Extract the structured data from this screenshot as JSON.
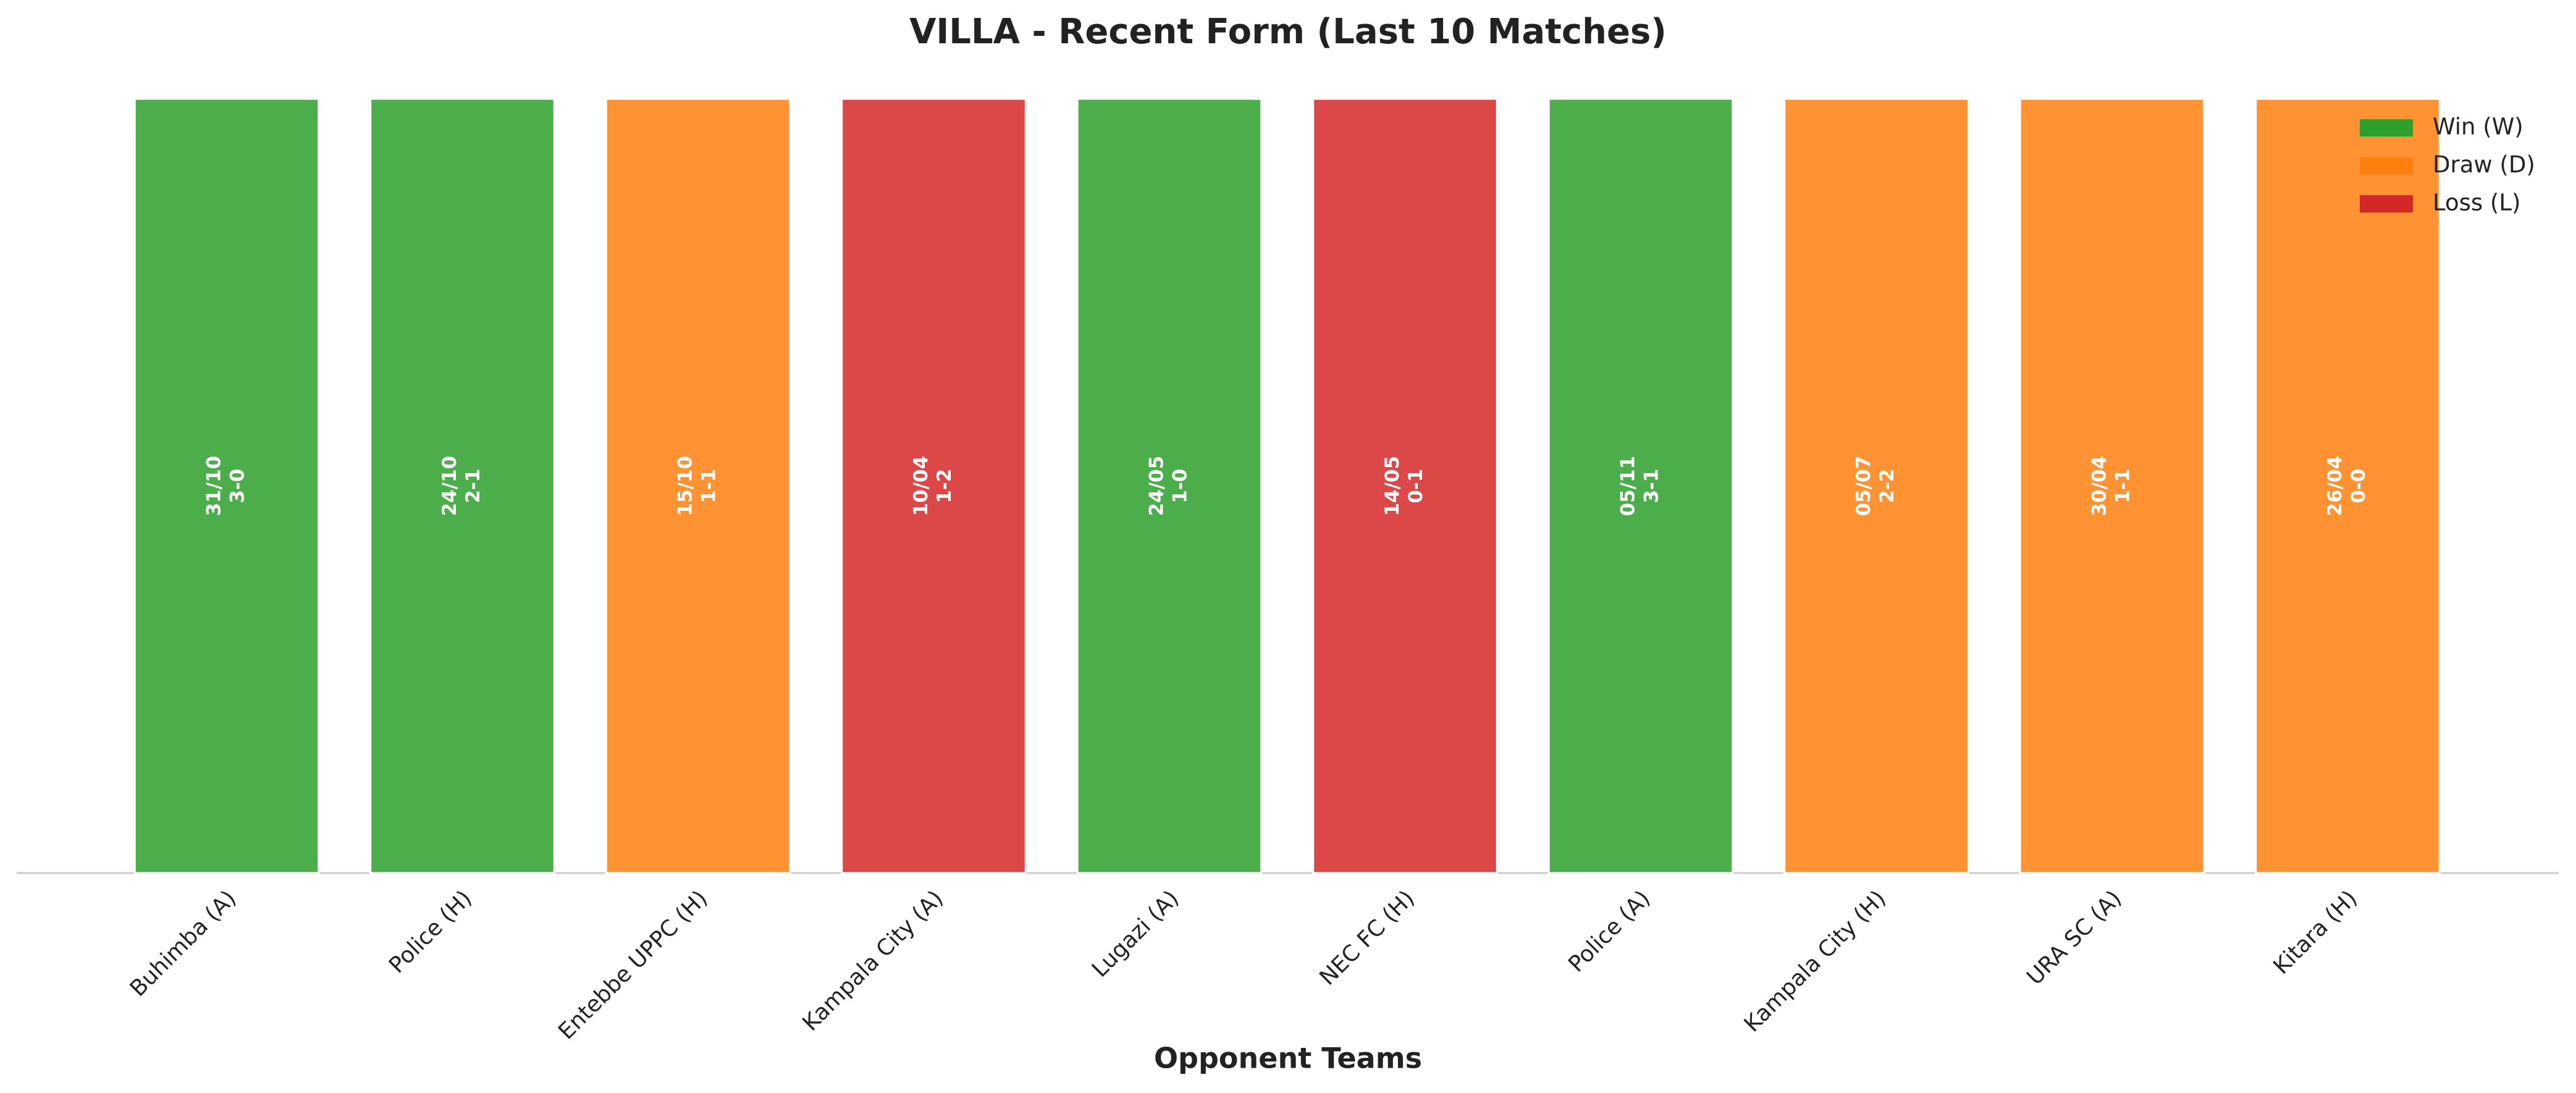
{
  "chart_data": {
    "type": "bar",
    "title": "VILLA - Recent Form (Last 10 Matches)",
    "x_label": "Opponent Teams",
    "categories": [
      "Buhimba (A)",
      "Police (H)",
      "Entebbe UPPC (H)",
      "Kampala City (A)",
      "Lugazi (A)",
      "NEC FC (H)",
      "Police (A)",
      "Kampala City (H)",
      "URA SC (A)",
      "Kitara (H)"
    ],
    "values": [
      1,
      1,
      1,
      1,
      1,
      1,
      1,
      1,
      1,
      1
    ],
    "colors": [
      "#2ca02c",
      "#2ca02c",
      "#ff7f0e",
      "#d62728",
      "#2ca02c",
      "#d62728",
      "#2ca02c",
      "#ff7f0e",
      "#ff7f0e",
      "#ff7f0e"
    ],
    "bar_alpha": 0.85,
    "dates": [
      "31/10",
      "24/10",
      "15/10",
      "10/04",
      "24/05",
      "14/05",
      "05/11",
      "05/07",
      "30/04",
      "26/04"
    ],
    "scores": [
      "3-0",
      "2-1",
      "1-1",
      "1-2",
      "1-0",
      "0-1",
      "3-1",
      "2-2",
      "1-1",
      "0-0"
    ],
    "ylim": [
      0,
      1
    ],
    "legend": "upper right",
    "legend_entries": [
      {
        "name": "Win (W)",
        "color": "#2ca02c"
      },
      {
        "name": "Draw (D)",
        "color": "#ff7f0e"
      },
      {
        "name": "Loss (L)",
        "color": "#d62728"
      }
    ]
  }
}
